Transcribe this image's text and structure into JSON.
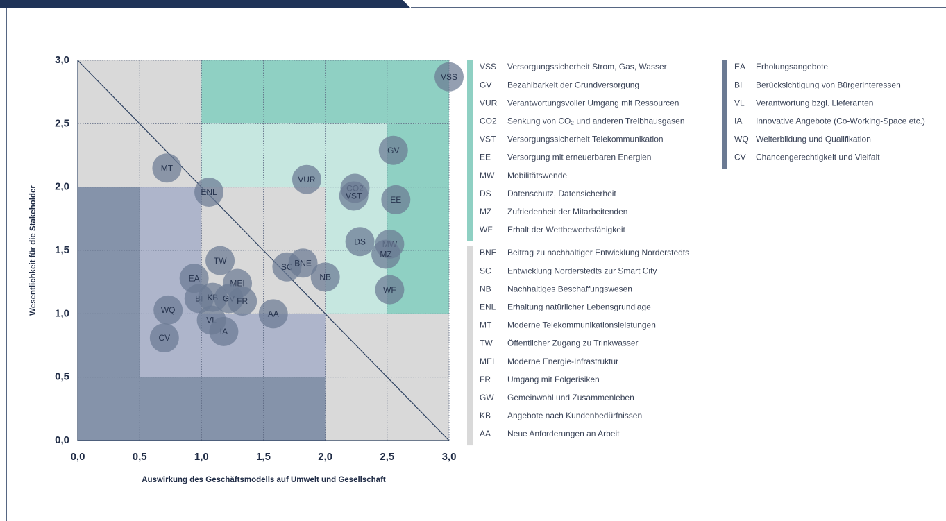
{
  "chart_data": {
    "type": "scatter",
    "xlabel": "Auswirkung des Geschäftsmodells auf Umwelt und Gesellschaft",
    "ylabel": "Wesentlichkeit für die Stakeholder",
    "xlim": [
      0,
      3
    ],
    "ylim": [
      0,
      3
    ],
    "xticks": [
      {
        "value": 0,
        "label": "0,0"
      },
      {
        "value": 0.5,
        "label": "0,5"
      },
      {
        "value": 1,
        "label": "1,0"
      },
      {
        "value": 1.5,
        "label": "1,5"
      },
      {
        "value": 2,
        "label": "2,0"
      },
      {
        "value": 2.5,
        "label": "2,5"
      },
      {
        "value": 3,
        "label": "3,0"
      }
    ],
    "yticks": [
      {
        "value": 0,
        "label": "0,0"
      },
      {
        "value": 0.5,
        "label": "0,5"
      },
      {
        "value": 1,
        "label": "1,0"
      },
      {
        "value": 1.5,
        "label": "1,5"
      },
      {
        "value": 2,
        "label": "2,0"
      },
      {
        "value": 2.5,
        "label": "2,5"
      },
      {
        "value": 3,
        "label": "3,0"
      }
    ],
    "grid": true,
    "color": "#6b7a93",
    "labels": [
      "VSS",
      "GV",
      "VUR",
      "CO2",
      "VST",
      "EE",
      "MT",
      "ENL",
      "DS",
      "MW",
      "MZ",
      "WF",
      "TW",
      "SC",
      "BNE",
      "NB",
      "EA",
      "MEI",
      "BI",
      "KB",
      "GV",
      "FR",
      "AA",
      "WQ",
      "VL",
      "IA",
      "CV"
    ],
    "x": [
      3.0,
      2.55,
      1.85,
      2.24,
      2.23,
      2.57,
      0.72,
      1.06,
      2.28,
      2.52,
      2.49,
      2.52,
      1.15,
      1.69,
      1.82,
      2.0,
      0.94,
      1.29,
      0.98,
      1.09,
      1.22,
      1.33,
      1.58,
      0.73,
      1.08,
      1.18,
      0.7
    ],
    "y": [
      2.87,
      2.29,
      2.06,
      1.99,
      1.93,
      1.9,
      2.15,
      1.96,
      1.57,
      1.55,
      1.47,
      1.19,
      1.42,
      1.37,
      1.4,
      1.29,
      1.28,
      1.24,
      1.12,
      1.13,
      1.12,
      1.1,
      1.0,
      1.03,
      0.95,
      0.86,
      0.81
    ],
    "legend": [
      {
        "color": "#8fd0c3",
        "items": [
          {
            "code": "VSS",
            "text": "Versorgungssicherheit Strom, Gas, Wasser"
          },
          {
            "code": "GV",
            "text": "Bezahlbarkeit der Grundversorgung"
          },
          {
            "code": "VUR",
            "text": "Verantwortungsvoller Umgang mit Ressourcen"
          },
          {
            "code": "CO2",
            "text": "Senkung von CO₂ und anderen Treibhausgasen"
          },
          {
            "code": "VST",
            "text": "Versorgungssicherheit Telekommunikation"
          },
          {
            "code": "EE",
            "text": "Versorgung mit erneuerbaren Energien"
          },
          {
            "code": "MW",
            "text": "Mobilitätswende"
          },
          {
            "code": "DS",
            "text": "Datenschutz, Datensicherheit"
          },
          {
            "code": "MZ",
            "text": "Zufriedenheit der Mitarbeitenden"
          },
          {
            "code": "WF",
            "text": "Erhalt der Wettbewerbsfähigkeit"
          }
        ]
      },
      {
        "color": "#d9d9d9",
        "items": [
          {
            "code": "BNE",
            "text": "Beitrag zu nachhaltiger Entwicklung Norderstedts"
          },
          {
            "code": "SC",
            "text": "Entwicklung Norderstedts zur Smart City"
          },
          {
            "code": "NB",
            "text": "Nachhaltiges Beschaffungswesen"
          },
          {
            "code": "ENL",
            "text": "Erhaltung natürlicher Lebensgrundlage"
          },
          {
            "code": "MT",
            "text": "Moderne Telekommunikationsleistungen"
          },
          {
            "code": "TW",
            "text": "Öffentlicher Zugang zu Trinkwasser"
          },
          {
            "code": "MEI",
            "text": "Moderne Energie-Infrastruktur"
          },
          {
            "code": "FR",
            "text": "Umgang mit Folgerisiken"
          },
          {
            "code": "GW",
            "text": "Gemeinwohl und Zusammenleben"
          },
          {
            "code": "KB",
            "text": "Angebote nach Kundenbedürfnissen"
          },
          {
            "code": "AA",
            "text": "Neue Anforderungen an Arbeit"
          }
        ]
      },
      {
        "color": "#6b7a93",
        "items": [
          {
            "code": "EA",
            "text": "Erholungsangebote"
          },
          {
            "code": "BI",
            "text": "Berücksichtigung von Bürgerinteressen"
          },
          {
            "code": "VL",
            "text": "Verantwortung bzgl. Lieferanten"
          },
          {
            "code": "IA",
            "text": "Innovative Angebote (Co-Working-Space etc.)"
          },
          {
            "code": "WQ",
            "text": "Weiterbildung und Qualifikation"
          },
          {
            "code": "CV",
            "text": "Chancengerechtigkeit und Vielfalt"
          }
        ]
      }
    ]
  }
}
